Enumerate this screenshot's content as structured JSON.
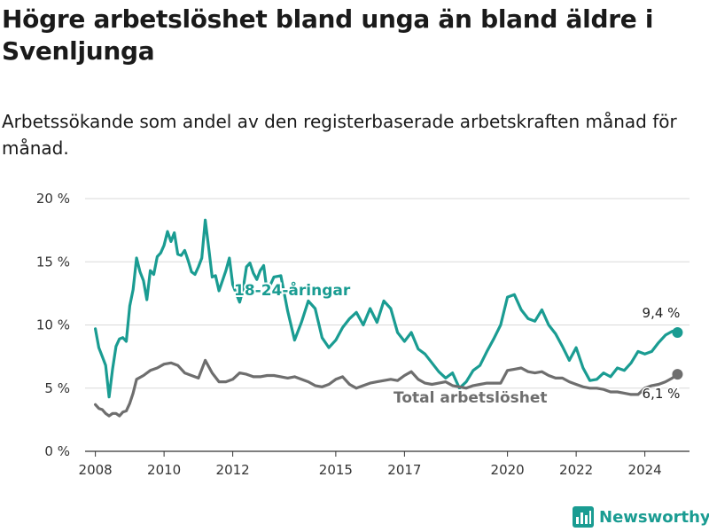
{
  "title": "Högre arbetslöshet bland unga än bland äldre i Svenljunga",
  "subtitle": "Arbetssökande som andel av den registerbaserade arbetskraften månad för månad.",
  "brand": "Newsworthy",
  "colors": {
    "youth": "#1a9c92",
    "total": "#6e6e6e",
    "grid": "#d9d9d9"
  },
  "chart_data": {
    "type": "line",
    "title": "Högre arbetslöshet bland unga än bland äldre i Svenljunga",
    "subtitle": "Arbetssökande som andel av den registerbaserade arbetskraften månad för månad.",
    "xlabel": "",
    "ylabel": "",
    "ylim": [
      0,
      20
    ],
    "xlim": [
      2007.7,
      2025.3
    ],
    "grid": true,
    "y_ticks": [
      {
        "value": 0,
        "label": "0 %"
      },
      {
        "value": 5,
        "label": "5 %"
      },
      {
        "value": 10,
        "label": "10 %"
      },
      {
        "value": 15,
        "label": "15 %"
      },
      {
        "value": 20,
        "label": "20 %"
      }
    ],
    "x_ticks": [
      {
        "value": 2008,
        "label": "2008"
      },
      {
        "value": 2010,
        "label": "2010"
      },
      {
        "value": 2012,
        "label": "2012"
      },
      {
        "value": 2015,
        "label": "2015"
      },
      {
        "value": 2017,
        "label": "2017"
      },
      {
        "value": 2020,
        "label": "2020"
      },
      {
        "value": 2022,
        "label": "2022"
      },
      {
        "value": 2024,
        "label": "2024"
      }
    ],
    "series": [
      {
        "name": "18-24-åringar",
        "end_label": "9,4 %",
        "x": [
          2008.0,
          2008.1,
          2008.2,
          2008.3,
          2008.4,
          2008.5,
          2008.6,
          2008.7,
          2008.8,
          2008.9,
          2009.0,
          2009.1,
          2009.2,
          2009.3,
          2009.4,
          2009.5,
          2009.6,
          2009.7,
          2009.8,
          2009.9,
          2010.0,
          2010.1,
          2010.2,
          2010.3,
          2010.4,
          2010.5,
          2010.6,
          2010.7,
          2010.8,
          2010.9,
          2011.0,
          2011.1,
          2011.2,
          2011.3,
          2011.4,
          2011.5,
          2011.6,
          2011.7,
          2011.8,
          2011.9,
          2012.0,
          2012.1,
          2012.2,
          2012.3,
          2012.4,
          2012.5,
          2012.6,
          2012.7,
          2012.8,
          2012.9,
          2013.0,
          2013.2,
          2013.4,
          2013.6,
          2013.8,
          2014.0,
          2014.2,
          2014.4,
          2014.6,
          2014.8,
          2015.0,
          2015.2,
          2015.4,
          2015.6,
          2015.8,
          2016.0,
          2016.2,
          2016.4,
          2016.6,
          2016.8,
          2017.0,
          2017.2,
          2017.4,
          2017.6,
          2017.8,
          2018.0,
          2018.2,
          2018.4,
          2018.6,
          2018.8,
          2019.0,
          2019.2,
          2019.4,
          2019.6,
          2019.8,
          2020.0,
          2020.2,
          2020.4,
          2020.6,
          2020.8,
          2021.0,
          2021.2,
          2021.4,
          2021.6,
          2021.8,
          2022.0,
          2022.2,
          2022.4,
          2022.6,
          2022.8,
          2023.0,
          2023.2,
          2023.4,
          2023.6,
          2023.8,
          2024.0,
          2024.2,
          2024.4,
          2024.6,
          2024.8,
          2024.95
        ],
        "values": [
          9.7,
          8.2,
          7.5,
          6.8,
          4.3,
          6.5,
          8.3,
          8.9,
          9.0,
          8.7,
          11.5,
          12.8,
          15.3,
          14.2,
          13.5,
          12.0,
          14.3,
          14.0,
          15.4,
          15.7,
          16.3,
          17.4,
          16.6,
          17.3,
          15.6,
          15.5,
          15.9,
          15.1,
          14.2,
          14.0,
          14.6,
          15.3,
          18.3,
          16.1,
          13.8,
          13.9,
          12.7,
          13.5,
          14.3,
          15.3,
          13.2,
          12.5,
          11.8,
          12.8,
          14.6,
          14.9,
          14.1,
          13.6,
          14.3,
          14.7,
          12.6,
          13.8,
          13.9,
          11.1,
          8.8,
          10.2,
          11.9,
          11.3,
          9.0,
          8.2,
          8.8,
          9.8,
          10.5,
          11.0,
          10.0,
          11.3,
          10.2,
          11.9,
          11.3,
          9.4,
          8.7,
          9.4,
          8.1,
          7.7,
          7.0,
          6.3,
          5.8,
          6.2,
          5.0,
          5.5,
          6.4,
          6.8,
          7.9,
          8.9,
          10.0,
          12.2,
          12.4,
          11.2,
          10.5,
          10.3,
          11.2,
          10.0,
          9.3,
          8.3,
          7.2,
          8.2,
          6.6,
          5.6,
          5.7,
          6.2,
          5.9,
          6.6,
          6.4,
          7.0,
          7.9,
          7.7,
          7.9,
          8.6,
          9.2,
          9.5,
          9.4
        ]
      },
      {
        "name": "Total arbetslöshet",
        "end_label": "6,1 %",
        "x": [
          2008.0,
          2008.1,
          2008.2,
          2008.3,
          2008.4,
          2008.5,
          2008.6,
          2008.7,
          2008.8,
          2008.9,
          2009.0,
          2009.1,
          2009.2,
          2009.4,
          2009.6,
          2009.8,
          2010.0,
          2010.2,
          2010.4,
          2010.6,
          2010.8,
          2011.0,
          2011.2,
          2011.4,
          2011.6,
          2011.8,
          2012.0,
          2012.2,
          2012.4,
          2012.6,
          2012.8,
          2013.0,
          2013.2,
          2013.4,
          2013.6,
          2013.8,
          2014.0,
          2014.2,
          2014.4,
          2014.6,
          2014.8,
          2015.0,
          2015.2,
          2015.4,
          2015.6,
          2015.8,
          2016.0,
          2016.2,
          2016.4,
          2016.6,
          2016.8,
          2017.0,
          2017.2,
          2017.4,
          2017.6,
          2017.8,
          2018.0,
          2018.2,
          2018.4,
          2018.6,
          2018.8,
          2019.0,
          2019.2,
          2019.4,
          2019.6,
          2019.8,
          2020.0,
          2020.2,
          2020.4,
          2020.6,
          2020.8,
          2021.0,
          2021.2,
          2021.4,
          2021.6,
          2021.8,
          2022.0,
          2022.2,
          2022.4,
          2022.6,
          2022.8,
          2023.0,
          2023.2,
          2023.4,
          2023.6,
          2023.8,
          2024.0,
          2024.2,
          2024.4,
          2024.6,
          2024.8,
          2024.95
        ],
        "values": [
          3.7,
          3.4,
          3.3,
          3.0,
          2.8,
          3.0,
          3.0,
          2.8,
          3.1,
          3.2,
          3.8,
          4.6,
          5.7,
          6.0,
          6.4,
          6.6,
          6.9,
          7.0,
          6.8,
          6.2,
          6.0,
          5.8,
          7.2,
          6.2,
          5.5,
          5.5,
          5.7,
          6.2,
          6.1,
          5.9,
          5.9,
          6.0,
          6.0,
          5.9,
          5.8,
          5.9,
          5.7,
          5.5,
          5.2,
          5.1,
          5.3,
          5.7,
          5.9,
          5.3,
          5.0,
          5.2,
          5.4,
          5.5,
          5.6,
          5.7,
          5.6,
          6.0,
          6.3,
          5.7,
          5.4,
          5.3,
          5.4,
          5.5,
          5.2,
          5.1,
          5.0,
          5.2,
          5.3,
          5.4,
          5.4,
          5.4,
          6.4,
          6.5,
          6.6,
          6.3,
          6.2,
          6.3,
          6.0,
          5.8,
          5.8,
          5.5,
          5.3,
          5.1,
          5.0,
          5.0,
          4.9,
          4.7,
          4.7,
          4.6,
          4.5,
          4.5,
          5.0,
          5.2,
          5.3,
          5.5,
          5.8,
          6.1
        ]
      }
    ]
  }
}
